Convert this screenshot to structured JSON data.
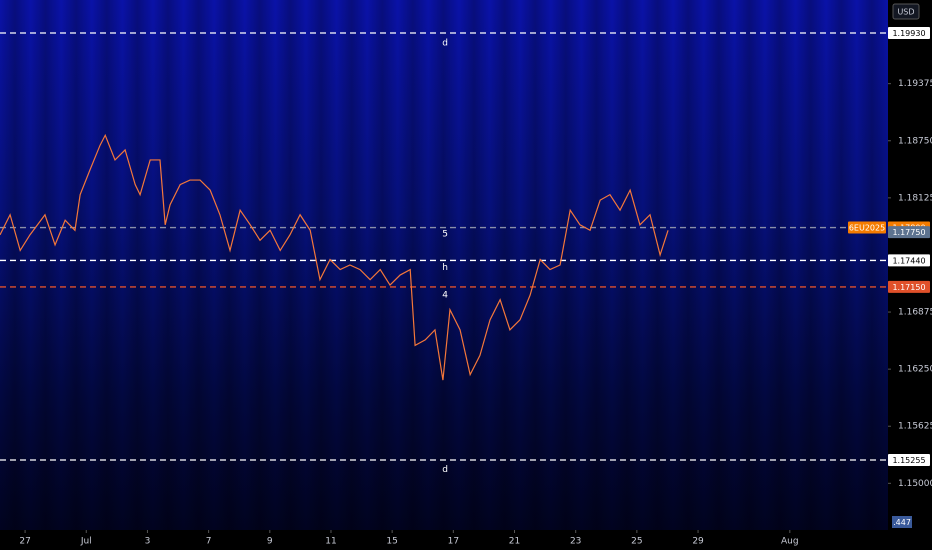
{
  "chart_data": {
    "type": "line",
    "currency": "USD",
    "volume_label": ".447",
    "x": [
      -0.82,
      -0.49,
      -0.16,
      0.16,
      0.65,
      0.98,
      1.31,
      1.63,
      1.8,
      2.12,
      2.45,
      2.62,
      2.94,
      3.27,
      3.6,
      3.76,
      4.09,
      4.41,
      4.58,
      4.74,
      5.07,
      5.39,
      5.72,
      6.05,
      6.37,
      6.7,
      7.03,
      7.36,
      7.68,
      8.01,
      8.34,
      8.66,
      8.99,
      9.32,
      9.64,
      9.97,
      10.3,
      10.62,
      10.95,
      11.28,
      11.61,
      11.93,
      12.26,
      12.59,
      12.75,
      13.08,
      13.4,
      13.66,
      13.89,
      14.22,
      14.55,
      14.87,
      15.2,
      15.53,
      15.85,
      16.18,
      16.51,
      16.84,
      17.16,
      17.49,
      17.82,
      18.14,
      18.47,
      18.8,
      19.12,
      19.45,
      19.78,
      20.1,
      20.43,
      20.76,
      21.02
    ],
    "series": [
      {
        "name": "6EU2025",
        "color": "#f4773a",
        "values": [
          1.1772,
          1.1794,
          1.1755,
          1.1772,
          1.1794,
          1.1761,
          1.1788,
          1.1777,
          1.1816,
          1.1843,
          1.187,
          1.1881,
          1.1854,
          1.1865,
          1.1827,
          1.1816,
          1.1854,
          1.1854,
          1.1783,
          1.1805,
          1.1827,
          1.1832,
          1.1832,
          1.1821,
          1.1794,
          1.1755,
          1.1799,
          1.1783,
          1.1766,
          1.1777,
          1.1755,
          1.1772,
          1.1794,
          1.1777,
          1.1723,
          1.1745,
          1.1734,
          1.1739,
          1.1734,
          1.1723,
          1.1734,
          1.1717,
          1.1728,
          1.1734,
          1.1651,
          1.1657,
          1.1668,
          1.1613,
          1.169,
          1.1668,
          1.1619,
          1.164,
          1.1679,
          1.1701,
          1.1668,
          1.1679,
          1.1706,
          1.1745,
          1.1734,
          1.1739,
          1.1799,
          1.1783,
          1.1777,
          1.181,
          1.1816,
          1.1799,
          1.1821,
          1.1783,
          1.1794,
          1.175,
          1.1777
        ]
      }
    ],
    "xlim": [
      -0.82,
      28.21
    ],
    "ylim": [
      1.14489,
      1.20291
    ],
    "xticks": [
      {
        "value": 0,
        "label": "27"
      },
      {
        "value": 2,
        "label": "Jul"
      },
      {
        "value": 4,
        "label": "3"
      },
      {
        "value": 6,
        "label": "7"
      },
      {
        "value": 8,
        "label": "9"
      },
      {
        "value": 10,
        "label": "11"
      },
      {
        "value": 12,
        "label": "15"
      },
      {
        "value": 14,
        "label": "17"
      },
      {
        "value": 16,
        "label": "21"
      },
      {
        "value": 18,
        "label": "23"
      },
      {
        "value": 20,
        "label": "25"
      },
      {
        "value": 22,
        "label": "29"
      },
      {
        "value": 25,
        "label": "Aug"
      }
    ],
    "yticks": [
      1.19375,
      {
        "value": 1.1875,
        "label": "1.18750"
      },
      1.18125,
      1.16875,
      {
        "value": 1.1625,
        "label": "1.16250"
      },
      1.15625,
      {
        "value": 1.15,
        "label": "1.15000"
      }
    ],
    "levels": [
      {
        "value": 1.1993,
        "label": "1.19930",
        "color": "#ffffff",
        "line": true
      },
      {
        "value": 1.178,
        "label": "1.17800",
        "tag": "6EU2025",
        "color": "#f57c00",
        "line_color": "#8a8fa8",
        "line": true
      },
      {
        "value": 1.1775,
        "label": "1.17750",
        "color": "#5d7390",
        "line": false
      },
      {
        "value": 1.1744,
        "label": "1.17440",
        "color": "#ffffff",
        "line": true
      },
      {
        "value": 1.1715,
        "label": "1.17150",
        "color": "#e0502a",
        "line": true
      },
      {
        "value": 1.15255,
        "label": "1.15255",
        "color": "#ffffff",
        "line": true
      }
    ],
    "annotations": [
      {
        "text": "d",
        "x": 13.73,
        "y": 1.1982
      },
      {
        "text": "5",
        "x": 13.73,
        "y": 1.1773
      },
      {
        "text": "h",
        "x": 13.73,
        "y": 1.1736
      },
      {
        "text": "4",
        "x": 13.73,
        "y": 1.1706
      },
      {
        "text": "d",
        "x": 13.73,
        "y": 1.1515
      }
    ]
  }
}
